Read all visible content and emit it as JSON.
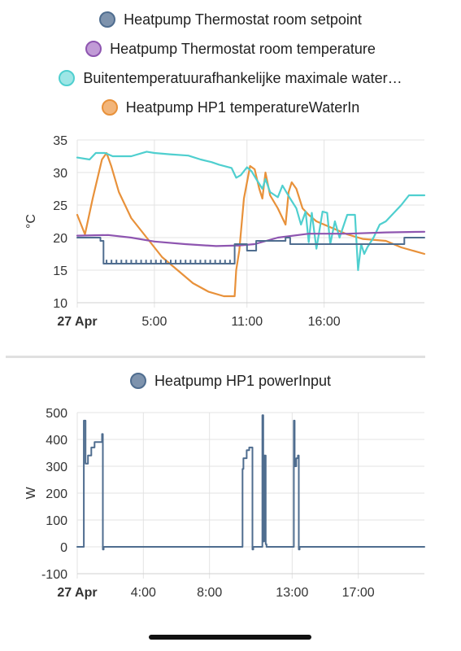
{
  "chart_data": [
    {
      "type": "line",
      "ylabel": "°C",
      "ylim": [
        10,
        35
      ],
      "yticks": [
        10,
        15,
        20,
        25,
        30,
        35
      ],
      "xrange_hours": [
        0,
        22.5
      ],
      "xticks": [
        {
          "t": 0,
          "label": "27 Apr",
          "bold": true
        },
        {
          "t": 5,
          "label": "5:00"
        },
        {
          "t": 11,
          "label": "11:00"
        },
        {
          "t": 16,
          "label": "16:00"
        }
      ],
      "grid": true,
      "legend_position": "top",
      "series": [
        {
          "name": "Heatpump Thermostat room setpoint",
          "color": "#4f6d8f",
          "step": true,
          "points": [
            [
              0,
              20
            ],
            [
              1.5,
              20
            ],
            [
              1.5,
              19.5
            ],
            [
              1.7,
              19.5
            ],
            [
              1.7,
              16
            ],
            [
              10.2,
              16
            ],
            [
              10.2,
              19
            ],
            [
              11,
              19
            ],
            [
              11,
              18
            ],
            [
              11.6,
              18
            ],
            [
              11.6,
              19.5
            ],
            [
              13.5,
              19.5
            ],
            [
              13.5,
              20
            ],
            [
              13.8,
              20
            ],
            [
              13.8,
              19
            ],
            [
              21.2,
              19
            ],
            [
              21.2,
              20
            ],
            [
              22.5,
              20
            ]
          ]
        },
        {
          "name": "Heatpump Thermostat room temperature",
          "color": "#8e55b0",
          "points": [
            [
              0,
              20.3
            ],
            [
              2,
              20.4
            ],
            [
              3.5,
              20
            ],
            [
              5,
              19.4
            ],
            [
              7,
              19
            ],
            [
              9,
              18.7
            ],
            [
              10.5,
              18.8
            ],
            [
              11.5,
              19
            ],
            [
              13,
              20
            ],
            [
              15,
              20.6
            ],
            [
              17.5,
              20.6
            ],
            [
              20,
              20.8
            ],
            [
              22.5,
              20.9
            ]
          ]
        },
        {
          "name": "Buitentemperatuurafhankelijke maximale water…",
          "color": "#4fcfcf",
          "points": [
            [
              0,
              32.3
            ],
            [
              0.8,
              32
            ],
            [
              1.2,
              33
            ],
            [
              1.8,
              33
            ],
            [
              2.3,
              32.5
            ],
            [
              3.5,
              32.5
            ],
            [
              4.5,
              33.2
            ],
            [
              5,
              33
            ],
            [
              6,
              32.8
            ],
            [
              7.2,
              32.6
            ],
            [
              8,
              32
            ],
            [
              8.7,
              31.6
            ],
            [
              9.2,
              31.2
            ],
            [
              10,
              30.7
            ],
            [
              10.3,
              29.2
            ],
            [
              10.6,
              29.6
            ],
            [
              11,
              30.8
            ],
            [
              11.3,
              30.2
            ],
            [
              11.6,
              29
            ],
            [
              12,
              27.5
            ],
            [
              12.2,
              29
            ],
            [
              12.5,
              27
            ],
            [
              13,
              26.2
            ],
            [
              13.3,
              28
            ],
            [
              13.8,
              26
            ],
            [
              14.2,
              24.5
            ],
            [
              14.5,
              22
            ],
            [
              14.8,
              24
            ],
            [
              15,
              19.3
            ],
            [
              15.2,
              23.8
            ],
            [
              15.5,
              18.3
            ],
            [
              15.9,
              24
            ],
            [
              16.2,
              23.8
            ],
            [
              16.4,
              19
            ],
            [
              16.7,
              22.5
            ],
            [
              17,
              20
            ],
            [
              17.5,
              23.5
            ],
            [
              18,
              23.5
            ],
            [
              18.2,
              15
            ],
            [
              18.4,
              19
            ],
            [
              18.6,
              17.5
            ],
            [
              18.8,
              18.5
            ],
            [
              19.2,
              20
            ],
            [
              19.6,
              22
            ],
            [
              20,
              22.5
            ],
            [
              21,
              25
            ],
            [
              21.5,
              26.5
            ],
            [
              22.5,
              26.5
            ]
          ]
        },
        {
          "name": "Heatpump HP1 temperatureWaterIn",
          "color": "#e8913a",
          "points": [
            [
              0,
              23.5
            ],
            [
              0.5,
              20.5
            ],
            [
              1,
              26
            ],
            [
              1.6,
              32
            ],
            [
              1.9,
              33
            ],
            [
              2.2,
              31
            ],
            [
              2.7,
              27
            ],
            [
              3.5,
              23
            ],
            [
              4.5,
              20
            ],
            [
              5.5,
              17
            ],
            [
              6.5,
              15
            ],
            [
              7.5,
              13
            ],
            [
              8.5,
              11.7
            ],
            [
              9.5,
              11
            ],
            [
              10.2,
              11
            ],
            [
              10.3,
              15
            ],
            [
              10.5,
              18
            ],
            [
              10.8,
              26
            ],
            [
              11.2,
              31
            ],
            [
              11.5,
              30.5
            ],
            [
              11.8,
              27.5
            ],
            [
              12,
              26
            ],
            [
              12.2,
              30
            ],
            [
              12.5,
              26.5
            ],
            [
              13,
              24.5
            ],
            [
              13.5,
              22
            ],
            [
              13.7,
              27
            ],
            [
              13.9,
              28.5
            ],
            [
              14.2,
              27.5
            ],
            [
              14.6,
              24.5
            ],
            [
              15,
              23.5
            ],
            [
              15.5,
              22.5
            ],
            [
              16.5,
              21.5
            ],
            [
              17.5,
              20.5
            ],
            [
              18.5,
              19.8
            ],
            [
              20,
              19.5
            ],
            [
              21,
              18.5
            ],
            [
              22.5,
              17.5
            ]
          ]
        }
      ]
    },
    {
      "type": "line",
      "ylabel": "W",
      "ylim": [
        -100,
        500
      ],
      "yticks": [
        -100,
        0,
        100,
        200,
        300,
        400,
        500
      ],
      "xrange_hours": [
        0,
        21
      ],
      "xticks": [
        {
          "t": 0,
          "label": "27 Apr",
          "bold": true
        },
        {
          "t": 4,
          "label": "4:00"
        },
        {
          "t": 8,
          "label": "8:00"
        },
        {
          "t": 13,
          "label": "13:00"
        },
        {
          "t": 17,
          "label": "17:00"
        }
      ],
      "grid": true,
      "legend_position": "top",
      "series": [
        {
          "name": "Heatpump HP1 powerInput",
          "color": "#4f6d8f",
          "step": true,
          "points": [
            [
              0,
              0
            ],
            [
              0.4,
              0
            ],
            [
              0.4,
              470
            ],
            [
              0.5,
              470
            ],
            [
              0.5,
              310
            ],
            [
              0.65,
              310
            ],
            [
              0.65,
              340
            ],
            [
              0.85,
              340
            ],
            [
              0.85,
              370
            ],
            [
              1.05,
              370
            ],
            [
              1.05,
              390
            ],
            [
              1.5,
              390
            ],
            [
              1.5,
              420
            ],
            [
              1.55,
              420
            ],
            [
              1.55,
              -10
            ],
            [
              1.6,
              -10
            ],
            [
              1.6,
              0
            ],
            [
              10.0,
              0
            ],
            [
              10.0,
              290
            ],
            [
              10.05,
              290
            ],
            [
              10.05,
              330
            ],
            [
              10.25,
              330
            ],
            [
              10.25,
              360
            ],
            [
              10.4,
              360
            ],
            [
              10.4,
              370
            ],
            [
              10.6,
              370
            ],
            [
              10.6,
              -10
            ],
            [
              10.65,
              -10
            ],
            [
              10.65,
              0
            ],
            [
              11.2,
              0
            ],
            [
              11.2,
              490
            ],
            [
              11.25,
              490
            ],
            [
              11.25,
              20
            ],
            [
              11.3,
              20
            ],
            [
              11.3,
              340
            ],
            [
              11.4,
              340
            ],
            [
              11.4,
              10
            ],
            [
              11.45,
              10
            ],
            [
              11.45,
              0
            ],
            [
              13.1,
              0
            ],
            [
              13.1,
              470
            ],
            [
              13.15,
              470
            ],
            [
              13.15,
              300
            ],
            [
              13.25,
              300
            ],
            [
              13.25,
              330
            ],
            [
              13.35,
              330
            ],
            [
              13.35,
              340
            ],
            [
              13.4,
              340
            ],
            [
              13.4,
              -10
            ],
            [
              13.45,
              -10
            ],
            [
              13.45,
              0
            ],
            [
              21,
              0
            ]
          ]
        }
      ]
    }
  ]
}
